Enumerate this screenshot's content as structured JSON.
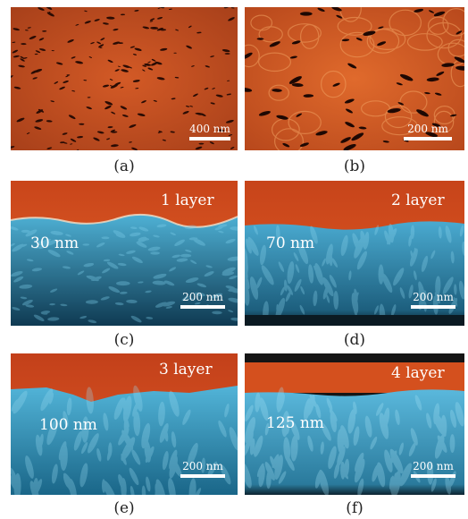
{
  "panels": [
    {
      "caption": "(a)",
      "scalebar": "400 nm"
    },
    {
      "caption": "(b)",
      "scalebar": "200 nm"
    },
    {
      "caption": "(c)",
      "layer": "1 layer",
      "thickness": "30 nm",
      "scalebar": "200 nm"
    },
    {
      "caption": "(d)",
      "layer": "2 layer",
      "thickness": "70 nm",
      "scalebar": "200 nm"
    },
    {
      "caption": "(e)",
      "layer": "3 layer",
      "thickness": "100 nm",
      "scalebar": "200 nm"
    },
    {
      "caption": "(f)",
      "layer": "4 layer",
      "thickness": "125 nm",
      "scalebar": "200 nm"
    }
  ],
  "colors": {
    "surface_orange": "#d8501f",
    "surface_dark": "#8a2a0c",
    "film_blue": "#3f9fc4",
    "film_dark": "#0e2f40",
    "background": "#ffffff"
  }
}
